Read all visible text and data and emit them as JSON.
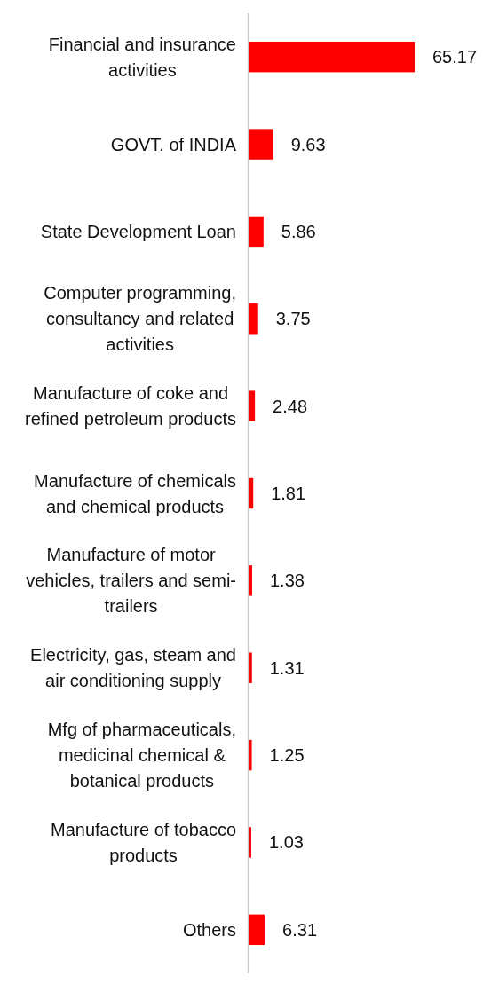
{
  "chart_data": {
    "type": "bar",
    "orientation": "horizontal",
    "data_labels": true,
    "categories": [
      "Financial and insurance activities",
      "GOVT. of INDIA",
      "State Development Loan",
      "Computer programming, consultancy and related activities",
      "Manufacture of coke and refined petroleum products",
      "Manufacture of chemicals and chemical products",
      "Manufacture of motor vehicles, trailers and semi-trailers",
      "Electricity, gas, steam and air conditioning supply",
      "Mfg of pharmaceuticals, medicinal chemical & botanical products",
      "Manufacture of tobacco products",
      "Others"
    ],
    "values": [
      65.17,
      9.63,
      5.86,
      3.75,
      2.48,
      1.81,
      1.38,
      1.31,
      1.25,
      1.03,
      6.31
    ],
    "color": "#ff0000"
  }
}
